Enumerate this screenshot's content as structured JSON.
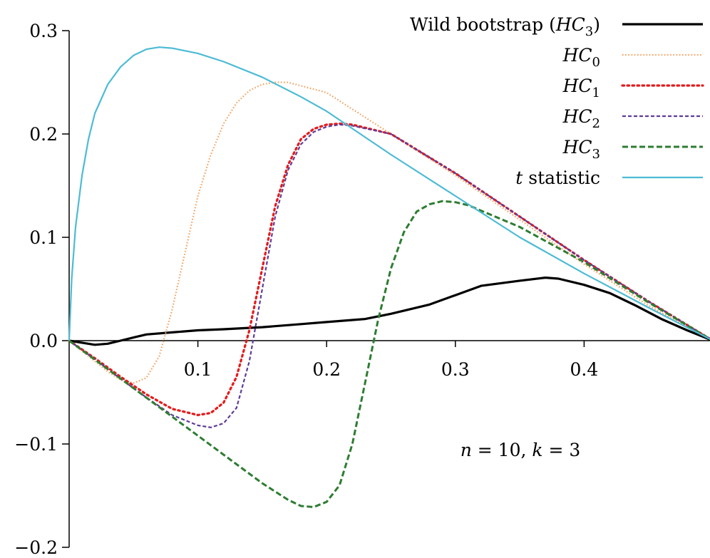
{
  "chart_data": {
    "type": "line",
    "title": "",
    "xlabel": "",
    "ylabel": "",
    "xlim": [
      0.0,
      0.5
    ],
    "ylim": [
      -0.2,
      0.3
    ],
    "x_ticks": [
      0.1,
      0.2,
      0.3,
      0.4
    ],
    "x_tick_labels": [
      "0.1",
      "0.2",
      "0.3",
      "0.4"
    ],
    "y_ticks": [
      -0.2,
      -0.1,
      0.0,
      0.1,
      0.2,
      0.3
    ],
    "y_tick_labels": [
      "−0.2",
      "−0.1",
      "0.0",
      "0.1",
      "0.2",
      "0.3"
    ],
    "grid": false,
    "legend_position": "top-right",
    "annotation": {
      "n_label": "n",
      "n_value": " = 10, ",
      "k_label": "k",
      "k_value": " = 3"
    },
    "series": [
      {
        "name_parts": [
          "Wild bootstrap (",
          "HC",
          "3",
          ")"
        ],
        "color": "#000000",
        "dash": "solid",
        "width": 3.2,
        "x": [
          0,
          0.01,
          0.02,
          0.03,
          0.04,
          0.05,
          0.06,
          0.08,
          0.1,
          0.12,
          0.15,
          0.18,
          0.2,
          0.23,
          0.25,
          0.28,
          0.3,
          0.32,
          0.35,
          0.37,
          0.38,
          0.4,
          0.42,
          0.44,
          0.46,
          0.48,
          0.5
        ],
        "values": [
          0.0,
          -0.002,
          -0.004,
          -0.003,
          0.0,
          0.003,
          0.006,
          0.008,
          0.01,
          0.011,
          0.013,
          0.016,
          0.018,
          0.021,
          0.026,
          0.035,
          0.044,
          0.053,
          0.058,
          0.061,
          0.06,
          0.054,
          0.046,
          0.034,
          0.021,
          0.01,
          0.0
        ]
      },
      {
        "name_parts": [
          "",
          "HC",
          "0",
          ""
        ],
        "color": "#F4A261",
        "dash": "fine-dot",
        "width": 2.2,
        "x": [
          0,
          0.01,
          0.02,
          0.03,
          0.04,
          0.05,
          0.06,
          0.07,
          0.08,
          0.09,
          0.1,
          0.11,
          0.12,
          0.13,
          0.14,
          0.15,
          0.16,
          0.17,
          0.2,
          0.25,
          0.3,
          0.35,
          0.4,
          0.45,
          0.5
        ],
        "values": [
          0.0,
          -0.01,
          -0.02,
          -0.03,
          -0.038,
          -0.041,
          -0.036,
          -0.015,
          0.03,
          0.085,
          0.14,
          0.18,
          0.21,
          0.23,
          0.242,
          0.248,
          0.25,
          0.25,
          0.24,
          0.2,
          0.16,
          0.117,
          0.074,
          0.034,
          0.0
        ]
      },
      {
        "name_parts": [
          "",
          "HC",
          "1",
          ""
        ],
        "color": "#E41A1C",
        "dash": "dot",
        "width": 3.2,
        "x": [
          0,
          0.02,
          0.04,
          0.06,
          0.08,
          0.1,
          0.11,
          0.12,
          0.13,
          0.14,
          0.15,
          0.16,
          0.17,
          0.18,
          0.19,
          0.2,
          0.21,
          0.22,
          0.25,
          0.3,
          0.35,
          0.4,
          0.45,
          0.5
        ],
        "values": [
          0.0,
          -0.017,
          -0.035,
          -0.052,
          -0.066,
          -0.072,
          -0.07,
          -0.06,
          -0.035,
          0.01,
          0.07,
          0.13,
          0.17,
          0.195,
          0.205,
          0.209,
          0.21,
          0.209,
          0.2,
          0.162,
          0.12,
          0.078,
          0.038,
          0.0
        ]
      },
      {
        "name_parts": [
          "",
          "HC",
          "2",
          ""
        ],
        "color": "#5E3C99",
        "dash": "short-dash",
        "width": 2.2,
        "x": [
          0,
          0.02,
          0.04,
          0.06,
          0.08,
          0.1,
          0.11,
          0.12,
          0.13,
          0.14,
          0.15,
          0.16,
          0.17,
          0.18,
          0.19,
          0.2,
          0.21,
          0.22,
          0.25,
          0.3,
          0.35,
          0.4,
          0.45,
          0.5
        ],
        "values": [
          0.0,
          -0.018,
          -0.037,
          -0.055,
          -0.072,
          -0.082,
          -0.084,
          -0.08,
          -0.065,
          -0.02,
          0.05,
          0.12,
          0.165,
          0.19,
          0.202,
          0.207,
          0.209,
          0.208,
          0.2,
          0.162,
          0.12,
          0.078,
          0.038,
          0.0
        ]
      },
      {
        "name_parts": [
          "",
          "HC",
          "3",
          ""
        ],
        "color": "#2E7D32",
        "dash": "dash",
        "width": 3.0,
        "x": [
          0,
          0.05,
          0.1,
          0.15,
          0.17,
          0.18,
          0.19,
          0.2,
          0.21,
          0.22,
          0.23,
          0.24,
          0.25,
          0.26,
          0.27,
          0.28,
          0.29,
          0.3,
          0.31,
          0.35,
          0.4,
          0.45,
          0.5
        ],
        "values": [
          0.0,
          -0.046,
          -0.092,
          -0.138,
          -0.154,
          -0.16,
          -0.161,
          -0.156,
          -0.14,
          -0.1,
          -0.04,
          0.02,
          0.07,
          0.105,
          0.125,
          0.132,
          0.135,
          0.134,
          0.131,
          0.11,
          0.076,
          0.037,
          0.0
        ]
      },
      {
        "name_parts": [
          "",
          "t",
          "",
          " statistic"
        ],
        "color": "#4DBBD5",
        "dash": "solid",
        "width": 2.2,
        "x": [
          0,
          0.002,
          0.005,
          0.01,
          0.015,
          0.02,
          0.03,
          0.04,
          0.05,
          0.06,
          0.07,
          0.08,
          0.1,
          0.12,
          0.15,
          0.18,
          0.2,
          0.25,
          0.3,
          0.35,
          0.4,
          0.45,
          0.5
        ],
        "values": [
          0.0,
          0.06,
          0.11,
          0.16,
          0.195,
          0.22,
          0.248,
          0.265,
          0.276,
          0.282,
          0.284,
          0.283,
          0.278,
          0.27,
          0.255,
          0.236,
          0.222,
          0.18,
          0.14,
          0.1,
          0.065,
          0.032,
          0.0
        ]
      }
    ]
  }
}
